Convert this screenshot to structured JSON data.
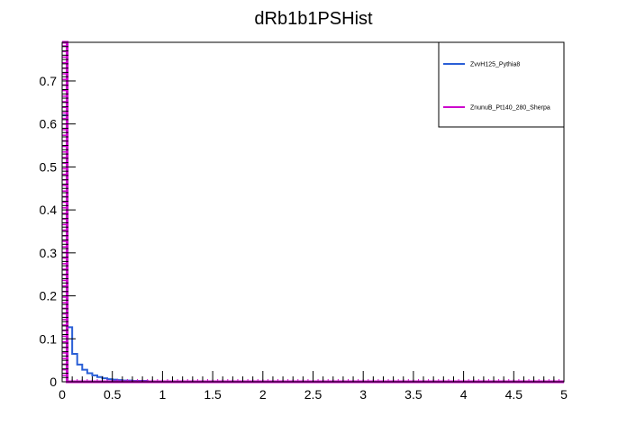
{
  "chart_data": {
    "type": "histogram",
    "title": "dRb1b1PSHist",
    "xlabel": "",
    "ylabel": "",
    "xlim": [
      0,
      5
    ],
    "ylim": [
      0,
      0.79
    ],
    "bin_width": 0.05,
    "x_ticks": [
      "0",
      "0.5",
      "1",
      "1.5",
      "2",
      "2.5",
      "3",
      "3.5",
      "4",
      "4.5",
      "5"
    ],
    "y_ticks": [
      "0",
      "0.1",
      "0.2",
      "0.3",
      "0.4",
      "0.5",
      "0.6",
      "0.7"
    ],
    "legend_position": "top-right",
    "grid": false,
    "series": [
      {
        "name": "ZvvH125_Pythia8",
        "color": "#2a5fd6",
        "values": [
          0.62,
          0.127,
          0.065,
          0.04,
          0.028,
          0.02,
          0.015,
          0.011,
          0.008,
          0.006,
          0.005,
          0.004,
          0.003,
          0.003,
          0.002,
          0.002,
          0.002,
          0.001,
          0.001,
          0.001,
          0.001,
          0.001,
          0.001,
          0.0005,
          0.0005
        ]
      },
      {
        "name": "ZnunuB_Pt140_280_Sherpa",
        "color": "#cc00cc",
        "values": [
          0.79,
          0
        ]
      }
    ]
  }
}
